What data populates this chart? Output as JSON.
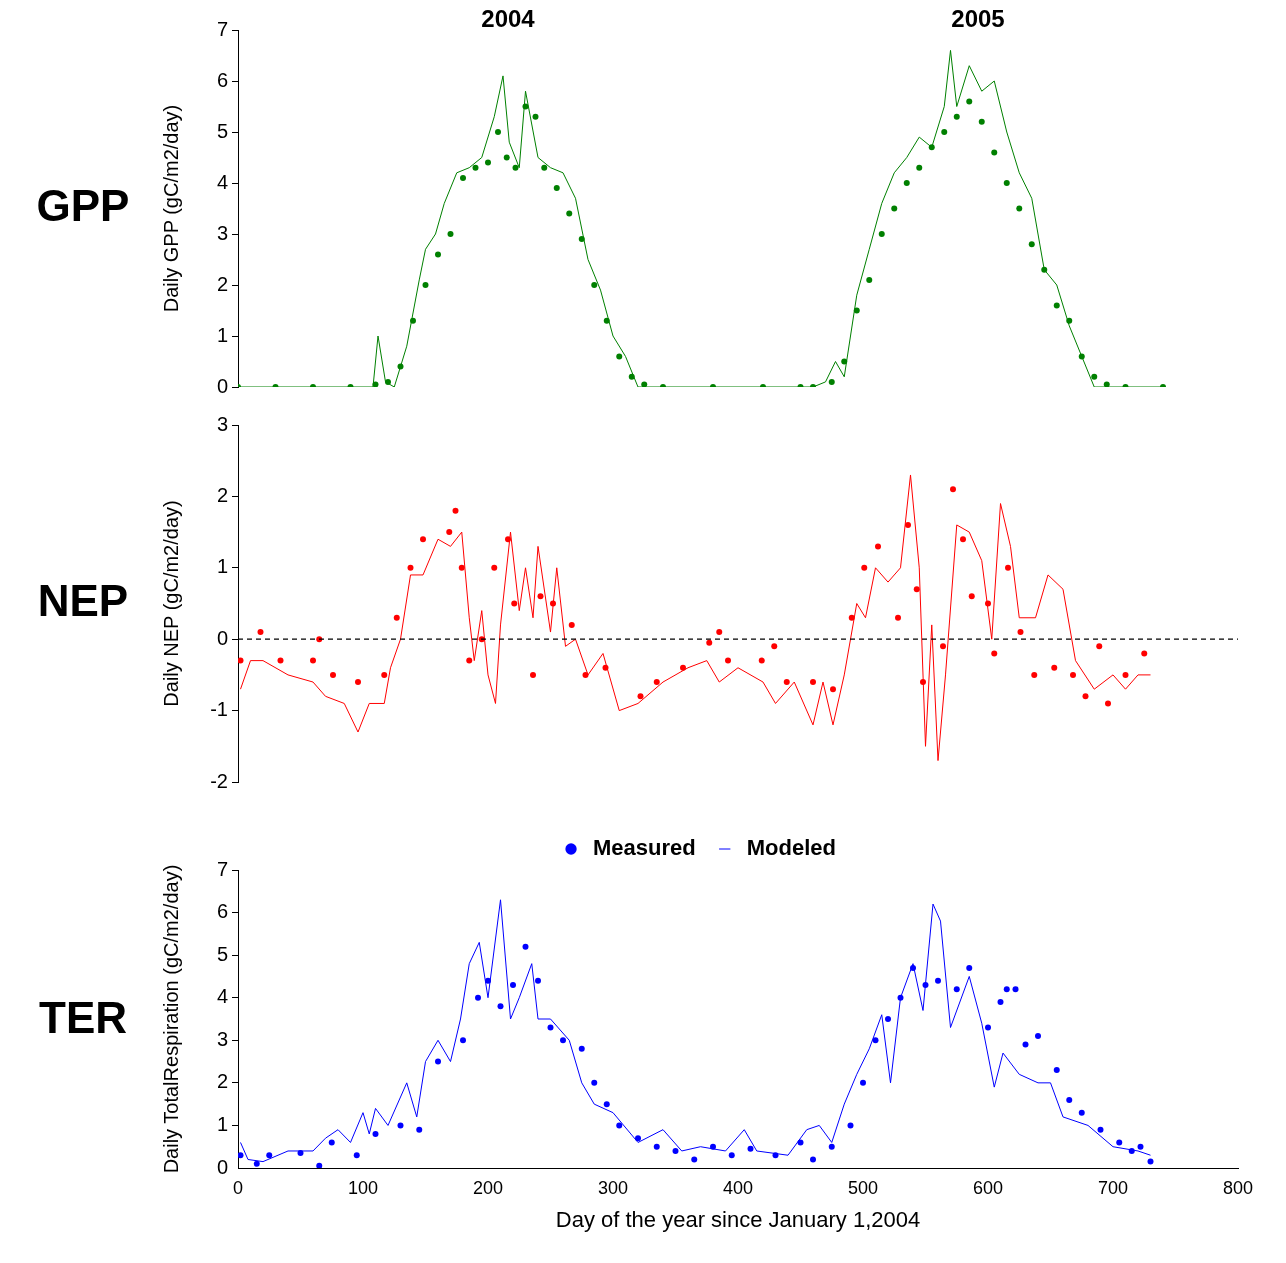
{
  "chart_data": [
    {
      "type": "scatter",
      "title": "GPP",
      "ylabel": "Daily GPP (gC/m2/day)",
      "xlim": [
        0,
        800
      ],
      "xticks": [
        0,
        100,
        200,
        300,
        400,
        500,
        600,
        700,
        800
      ],
      "ylim": [
        0,
        7
      ],
      "yticks": [
        0,
        1,
        2,
        3,
        4,
        5,
        6,
        7
      ],
      "tick_labels": "y",
      "grid": false,
      "legend": false,
      "annotations": [
        "2004",
        "2005"
      ],
      "series": [
        {
          "marker": "circle",
          "color": "#008000",
          "x": [
            0,
            30,
            60,
            90,
            110,
            120,
            130,
            140,
            150,
            160,
            170,
            180,
            190,
            200,
            208,
            215,
            222,
            230,
            238,
            245,
            255,
            265,
            275,
            285,
            295,
            305,
            315,
            325,
            340,
            380,
            420,
            450,
            460,
            475,
            485,
            495,
            505,
            515,
            525,
            535,
            545,
            555,
            565,
            575,
            585,
            595,
            605,
            615,
            625,
            635,
            645,
            655,
            665,
            675,
            685,
            695,
            710,
            740
          ],
          "values": [
            0,
            0,
            0,
            0,
            0.05,
            0.1,
            0.4,
            1.3,
            2.0,
            2.6,
            3.0,
            4.1,
            4.3,
            4.4,
            5.0,
            4.5,
            4.3,
            5.5,
            5.3,
            4.3,
            3.9,
            3.4,
            2.9,
            2.0,
            1.3,
            0.6,
            0.2,
            0.05,
            0,
            0,
            0,
            0,
            0,
            0.1,
            0.5,
            1.5,
            2.1,
            3.0,
            3.5,
            4.0,
            4.3,
            4.7,
            5.0,
            5.3,
            5.6,
            5.2,
            4.6,
            4.0,
            3.5,
            2.8,
            2.3,
            1.6,
            1.3,
            0.6,
            0.2,
            0.05,
            0,
            0
          ]
        },
        {
          "type": "line",
          "marker": "none",
          "color": "#008000",
          "x": [
            0,
            100,
            108,
            112,
            118,
            125,
            135,
            145,
            150,
            158,
            165,
            175,
            185,
            195,
            205,
            212,
            217,
            225,
            230,
            240,
            250,
            260,
            270,
            280,
            290,
            300,
            310,
            320,
            400,
            460,
            470,
            478,
            485,
            495,
            505,
            515,
            525,
            535,
            545,
            555,
            565,
            570,
            575,
            585,
            595,
            605,
            615,
            625,
            635,
            645,
            655,
            665,
            675,
            685,
            740
          ],
          "values": [
            0,
            0,
            0,
            1.0,
            0.1,
            0,
            0.8,
            2.1,
            2.7,
            3.0,
            3.6,
            4.2,
            4.3,
            4.5,
            5.3,
            6.1,
            4.8,
            4.3,
            5.8,
            4.5,
            4.3,
            4.2,
            3.7,
            2.5,
            1.9,
            1.0,
            0.6,
            0,
            0,
            0,
            0.1,
            0.5,
            0.2,
            1.8,
            2.7,
            3.6,
            4.2,
            4.5,
            4.9,
            4.7,
            5.5,
            6.6,
            5.5,
            6.3,
            5.8,
            6.0,
            5.0,
            4.2,
            3.7,
            2.3,
            2.0,
            1.2,
            0.6,
            0,
            0
          ]
        }
      ]
    },
    {
      "type": "scatter",
      "title": "NEP",
      "ylabel": "Daily NEP (gC/m2/day)",
      "xlim": [
        0,
        800
      ],
      "xticks": [
        0,
        100,
        200,
        300,
        400,
        500,
        600,
        700,
        800
      ],
      "ylim": [
        -2,
        3
      ],
      "yticks": [
        -2,
        -1,
        0,
        1,
        2,
        3
      ],
      "tick_labels": "y",
      "grid": false,
      "legend": false,
      "ref_lines": [
        {
          "axis": "y",
          "value": 0,
          "color": "#000000",
          "line_style": "dashed"
        }
      ],
      "series": [
        {
          "marker": "circle",
          "color": "#ff0000",
          "x": [
            2,
            18,
            34,
            60,
            65,
            76,
            96,
            117,
            127,
            138,
            148,
            169,
            174,
            179,
            185,
            195,
            205,
            216,
            221,
            236,
            242,
            252,
            267,
            278,
            294,
            322,
            335,
            356,
            377,
            385,
            392,
            419,
            429,
            439,
            460,
            476,
            491,
            501,
            512,
            528,
            536,
            543,
            548,
            564,
            572,
            580,
            587,
            600,
            605,
            616,
            626,
            637,
            653,
            668,
            678,
            689,
            696,
            710,
            725
          ],
          "values": [
            -0.3,
            0.1,
            -0.3,
            -0.3,
            0,
            -0.5,
            -0.6,
            -0.5,
            0.3,
            1.0,
            1.4,
            1.5,
            1.8,
            1.0,
            -0.3,
            0,
            1.0,
            1.4,
            0.5,
            -0.5,
            0.6,
            0.5,
            0.2,
            -0.5,
            -0.4,
            -0.8,
            -0.6,
            -0.4,
            -0.05,
            0.1,
            -0.3,
            -0.3,
            -0.1,
            -0.6,
            -0.6,
            -0.7,
            0.3,
            1.0,
            1.3,
            0.3,
            1.6,
            0.7,
            -0.6,
            -0.1,
            2.1,
            1.4,
            0.6,
            0.5,
            -0.2,
            1.0,
            0.1,
            -0.5,
            -0.4,
            -0.5,
            -0.8,
            -0.1,
            -0.9,
            -0.5,
            -0.2
          ]
        },
        {
          "type": "line",
          "marker": "none",
          "color": "#ff0000",
          "x": [
            2,
            10,
            20,
            40,
            60,
            70,
            85,
            96,
            105,
            117,
            122,
            130,
            138,
            148,
            160,
            170,
            179,
            185,
            189,
            195,
            200,
            206,
            210,
            218,
            225,
            230,
            236,
            240,
            250,
            255,
            262,
            270,
            280,
            292,
            305,
            320,
            340,
            360,
            375,
            385,
            400,
            420,
            430,
            445,
            460,
            468,
            476,
            485,
            495,
            502,
            510,
            520,
            530,
            538,
            545,
            550,
            555,
            560,
            566,
            575,
            585,
            595,
            603,
            610,
            618,
            625,
            638,
            648,
            660,
            670,
            685,
            700,
            710,
            720,
            730
          ],
          "values": [
            -0.7,
            -0.3,
            -0.3,
            -0.5,
            -0.6,
            -0.8,
            -0.9,
            -1.3,
            -0.9,
            -0.9,
            -0.4,
            0,
            0.9,
            0.9,
            1.4,
            1.3,
            1.5,
            0.3,
            -0.3,
            0.4,
            -0.5,
            -0.9,
            0.2,
            1.5,
            0.4,
            1.0,
            0.3,
            1.3,
            0.1,
            1.0,
            -0.1,
            0,
            -0.5,
            -0.2,
            -1.0,
            -0.9,
            -0.6,
            -0.4,
            -0.3,
            -0.6,
            -0.4,
            -0.6,
            -0.9,
            -0.6,
            -1.2,
            -0.6,
            -1.2,
            -0.5,
            0.5,
            0.3,
            1.0,
            0.8,
            1.0,
            2.3,
            1.0,
            -1.5,
            0.2,
            -1.7,
            -0.5,
            1.6,
            1.5,
            1.1,
            0,
            1.9,
            1.3,
            0.3,
            0.3,
            0.9,
            0.7,
            -0.3,
            -0.7,
            -0.5,
            -0.7,
            -0.5,
            -0.5
          ]
        }
      ]
    },
    {
      "type": "scatter",
      "title": "TER",
      "ylabel": "Daily TotalRespiration (gC/m2/day)",
      "xlabel": "Day of the year since January 1,2004",
      "xlim": [
        0,
        800
      ],
      "xticks": [
        0,
        100,
        200,
        300,
        400,
        500,
        600,
        700,
        800
      ],
      "ylim": [
        0,
        7
      ],
      "yticks": [
        0,
        1,
        2,
        3,
        4,
        5,
        6,
        7
      ],
      "grid": false,
      "legend": "top",
      "series": [
        {
          "marker": "circle",
          "name": "Measured",
          "color": "#0000ff",
          "x": [
            2,
            15,
            25,
            50,
            65,
            75,
            95,
            110,
            130,
            145,
            160,
            180,
            192,
            200,
            210,
            220,
            230,
            240,
            250,
            260,
            275,
            285,
            295,
            305,
            320,
            335,
            350,
            365,
            380,
            395,
            410,
            430,
            450,
            460,
            475,
            490,
            500,
            510,
            520,
            530,
            540,
            550,
            560,
            575,
            585,
            600,
            610,
            615,
            622,
            630,
            640,
            655,
            665,
            675,
            690,
            705,
            715,
            722,
            730
          ],
          "values": [
            0.3,
            0.1,
            0.3,
            0.35,
            0.05,
            0.6,
            0.3,
            0.8,
            1.0,
            0.9,
            2.5,
            3.0,
            4.0,
            4.4,
            3.8,
            4.3,
            5.2,
            4.4,
            3.3,
            3.0,
            2.8,
            2.0,
            1.5,
            1.0,
            0.7,
            0.5,
            0.4,
            0.2,
            0.5,
            0.3,
            0.45,
            0.3,
            0.6,
            0.2,
            0.5,
            1.0,
            2.0,
            3.0,
            3.5,
            4.0,
            4.7,
            4.3,
            4.4,
            4.2,
            4.7,
            3.3,
            3.9,
            4.2,
            4.2,
            2.9,
            3.1,
            2.3,
            1.6,
            1.3,
            0.9,
            0.6,
            0.4,
            0.5,
            0.15
          ]
        },
        {
          "type": "line",
          "marker": "none",
          "name": "Modeled",
          "color": "#0000ff",
          "x": [
            2,
            8,
            20,
            40,
            60,
            70,
            80,
            90,
            100,
            105,
            110,
            120,
            135,
            143,
            150,
            160,
            170,
            178,
            185,
            193,
            200,
            210,
            218,
            225,
            235,
            240,
            250,
            265,
            275,
            285,
            300,
            320,
            340,
            355,
            370,
            390,
            405,
            415,
            440,
            455,
            465,
            475,
            485,
            495,
            505,
            515,
            522,
            530,
            540,
            548,
            556,
            562,
            570,
            585,
            595,
            605,
            612,
            625,
            640,
            650,
            660,
            680,
            700,
            720,
            730
          ],
          "values": [
            0.6,
            0.2,
            0.15,
            0.4,
            0.4,
            0.7,
            0.9,
            0.6,
            1.3,
            0.8,
            1.4,
            1.0,
            2.0,
            1.2,
            2.5,
            3.0,
            2.5,
            3.5,
            4.8,
            5.3,
            4.0,
            6.3,
            3.5,
            4.0,
            4.8,
            3.5,
            3.5,
            3.0,
            2.0,
            1.5,
            1.3,
            0.6,
            0.9,
            0.4,
            0.5,
            0.4,
            0.9,
            0.4,
            0.3,
            0.9,
            1.0,
            0.6,
            1.5,
            2.2,
            2.8,
            3.6,
            2.0,
            4.0,
            4.8,
            3.7,
            6.2,
            5.8,
            3.3,
            4.5,
            3.4,
            1.9,
            2.7,
            2.2,
            2.0,
            2.0,
            1.2,
            1.0,
            0.5,
            0.4,
            0.3
          ]
        }
      ]
    }
  ]
}
